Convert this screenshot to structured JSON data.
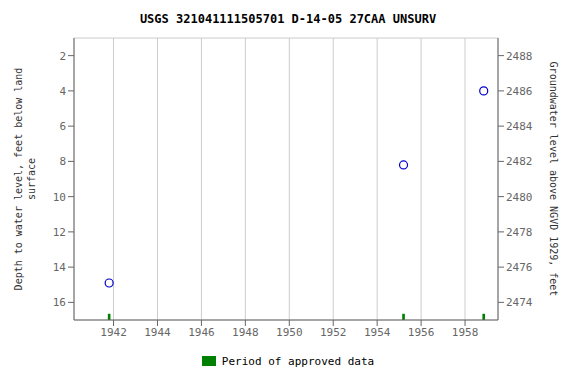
{
  "chart_data": {
    "type": "scatter",
    "title": "USGS 321041111505701 D-14-05 27CAA  UNSURV",
    "x_label": null,
    "y_label": "Depth to water level, feet below land\nsurface",
    "y2_label": "Groundwater level above NGVD 1929, feet",
    "series": [
      {
        "type": "scatter",
        "color": "#0000cc",
        "marker": "open circle",
        "x": [
          1941.8,
          1955.2,
          1958.85
        ],
        "values": [
          14.9,
          8.2,
          4.0
        ]
      },
      {
        "name": "Period of approved data",
        "type": "bar",
        "color": "#008000",
        "x": [
          1941.8,
          1955.2,
          1958.85
        ],
        "widths": [
          0.12,
          0.12,
          0.12
        ]
      }
    ],
    "xlim": [
      1940.2,
      1959.5
    ],
    "xticks": [
      1942,
      1944,
      1946,
      1948,
      1950,
      1952,
      1954,
      1956,
      1958
    ],
    "ylim": [
      17.0,
      1.0
    ],
    "yticks": [
      2,
      4,
      6,
      8,
      10,
      12,
      14,
      16
    ],
    "y2lim": [
      2473,
      2489
    ],
    "y2ticks": [
      2488,
      2486,
      2484,
      2482,
      2480,
      2478,
      2476,
      2474
    ],
    "grid": true,
    "legend": "bottom"
  }
}
